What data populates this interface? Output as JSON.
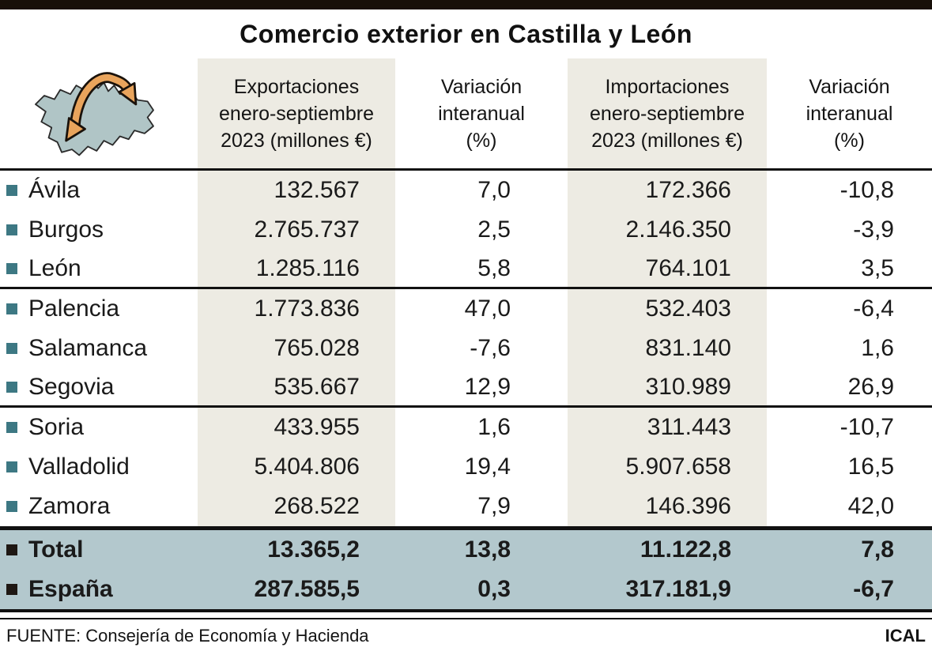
{
  "title": "Comercio exterior en Castilla y León",
  "header": {
    "map_icon": "castilla-y-leon-map-with-trade-arrows",
    "col_labels": [
      [
        "Exportaciones",
        "enero-septiembre",
        "2023 (millones €)"
      ],
      [
        "Variación",
        "interanual",
        "(%)"
      ],
      [
        "Importaciones",
        "enero-septiembre",
        "2023 (millones €)"
      ],
      [
        "Variación",
        "interanual",
        "(%)"
      ]
    ]
  },
  "chart_data": {
    "type": "table",
    "title": "Comercio exterior en Castilla y León",
    "columns": [
      "",
      "Exportaciones enero-septiembre 2023 (millones €)",
      "Variación interanual (%)",
      "Importaciones enero-septiembre 2023 (millones €)",
      "Variación interanual (%)"
    ],
    "rows": [
      [
        "Ávila",
        "132.567",
        "7,0",
        "172.366",
        "-10,8"
      ],
      [
        "Burgos",
        "2.765.737",
        "2,5",
        "2.146.350",
        "-3,9"
      ],
      [
        "León",
        "1.285.116",
        "5,8",
        "764.101",
        "3,5"
      ],
      [
        "Palencia",
        "1.773.836",
        "47,0",
        "532.403",
        "-6,4"
      ],
      [
        "Salamanca",
        "765.028",
        "-7,6",
        "831.140",
        "1,6"
      ],
      [
        "Segovia",
        "535.667",
        "12,9",
        "310.989",
        "26,9"
      ],
      [
        "Soria",
        "433.955",
        "1,6",
        "311.443",
        "-10,7"
      ],
      [
        "Valladolid",
        "5.404.806",
        "19,4",
        "5.907.658",
        "16,5"
      ],
      [
        "Zamora",
        "268.522",
        "7,9",
        "146.396",
        "42,0"
      ]
    ],
    "summary_rows": [
      [
        "Total",
        "13.365,2",
        "13,8",
        "11.122,8",
        "7,8"
      ],
      [
        "España",
        "287.585,5",
        "0,3",
        "317.181,9",
        "-6,7"
      ]
    ]
  },
  "footer": {
    "source": "FUENTE: Consejería de Economía y Hacienda",
    "credit": "ICAL"
  },
  "colors": {
    "column_band": "#edebe3",
    "summary_band": "#b3c8cd",
    "region_bullet": "#3d7883",
    "arrow_orange": "#e9a45c",
    "map_fill": "#b0c5c6",
    "line_black": "#111111"
  }
}
